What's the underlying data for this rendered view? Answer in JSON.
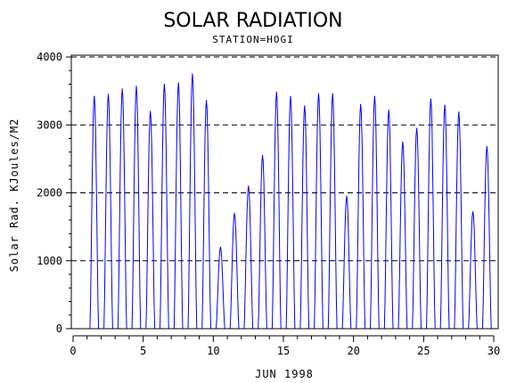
{
  "chart_data": {
    "type": "line",
    "title": "SOLAR RADIATION",
    "subtitle": "STATION=HOGI",
    "xlabel": "JUN 1998",
    "ylabel": "Solar Rad. KJoules/M2",
    "xlim": [
      0,
      30
    ],
    "ylim": [
      0,
      4000
    ],
    "x_ticks": [
      0,
      5,
      10,
      15,
      20,
      25,
      30
    ],
    "y_ticks": [
      0,
      1000,
      2000,
      3000,
      4000
    ],
    "grid": "horizontal dashed at y ticks",
    "series": [
      {
        "color": "#0000ff",
        "daily_peaks": [
          {
            "day": 1,
            "peak": 3420
          },
          {
            "day": 2,
            "peak": 3450
          },
          {
            "day": 3,
            "peak": 3530
          },
          {
            "day": 4,
            "peak": 3570
          },
          {
            "day": 5,
            "peak": 3200
          },
          {
            "day": 6,
            "peak": 3600
          },
          {
            "day": 7,
            "peak": 3620
          },
          {
            "day": 8,
            "peak": 3750
          },
          {
            "day": 9,
            "peak": 3360
          },
          {
            "day": 10,
            "peak": 1200
          },
          {
            "day": 11,
            "peak": 1700
          },
          {
            "day": 12,
            "peak": 2100
          },
          {
            "day": 13,
            "peak": 2550
          },
          {
            "day": 14,
            "peak": 3480
          },
          {
            "day": 15,
            "peak": 3420
          },
          {
            "day": 16,
            "peak": 3280
          },
          {
            "day": 17,
            "peak": 3460
          },
          {
            "day": 18,
            "peak": 3460
          },
          {
            "day": 19,
            "peak": 1950
          },
          {
            "day": 20,
            "peak": 3300
          },
          {
            "day": 21,
            "peak": 3420
          },
          {
            "day": 22,
            "peak": 3220
          },
          {
            "day": 23,
            "peak": 2750
          },
          {
            "day": 24,
            "peak": 2950
          },
          {
            "day": 25,
            "peak": 3380
          },
          {
            "day": 26,
            "peak": 3290
          },
          {
            "day": 27,
            "peak": 3190
          },
          {
            "day": 28,
            "peak": 1720
          },
          {
            "day": 29,
            "peak": 2680
          }
        ]
      }
    ]
  }
}
